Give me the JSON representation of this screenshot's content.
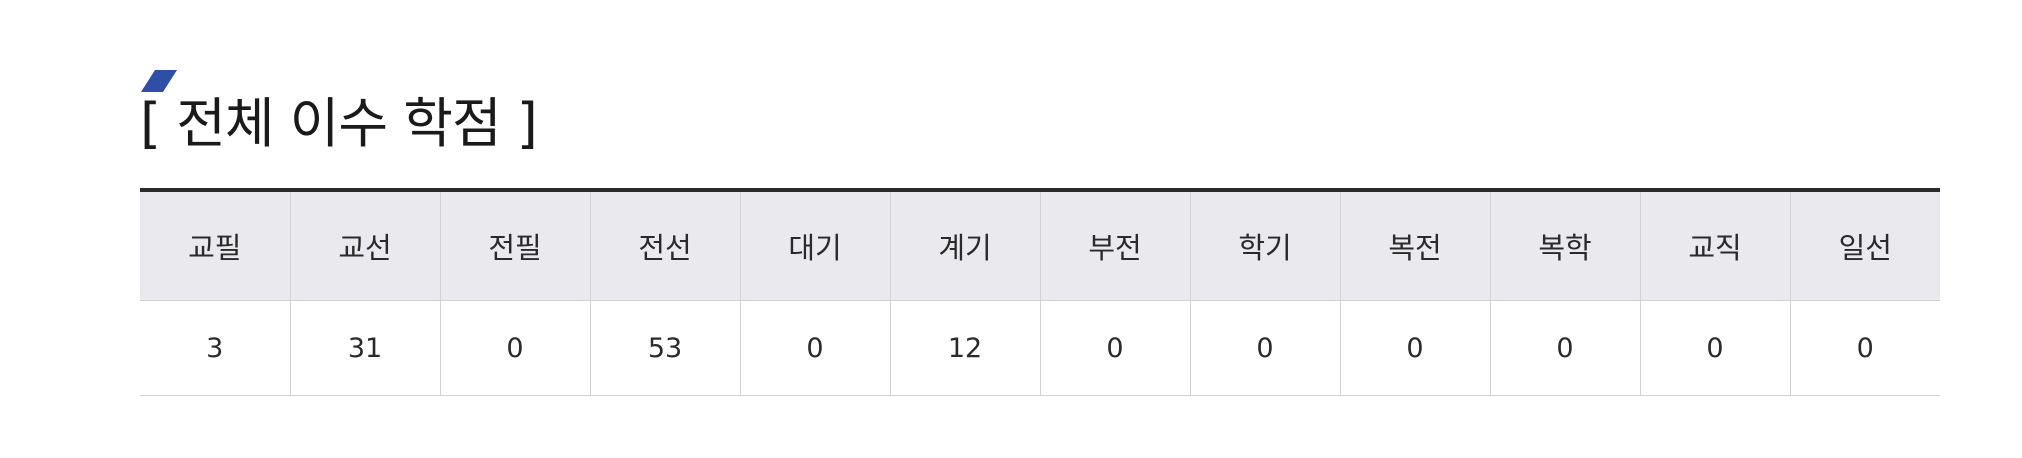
{
  "section": {
    "title": "[ 전체 이수 학점 ]",
    "accent_color": "#2f4ea8"
  },
  "table": {
    "headers": [
      "교필",
      "교선",
      "전필",
      "전선",
      "대기",
      "계기",
      "부전",
      "학기",
      "복전",
      "복학",
      "교직",
      "일선"
    ],
    "values": [
      "3",
      "31",
      "0",
      "53",
      "0",
      "12",
      "0",
      "0",
      "0",
      "0",
      "0",
      "0"
    ]
  }
}
